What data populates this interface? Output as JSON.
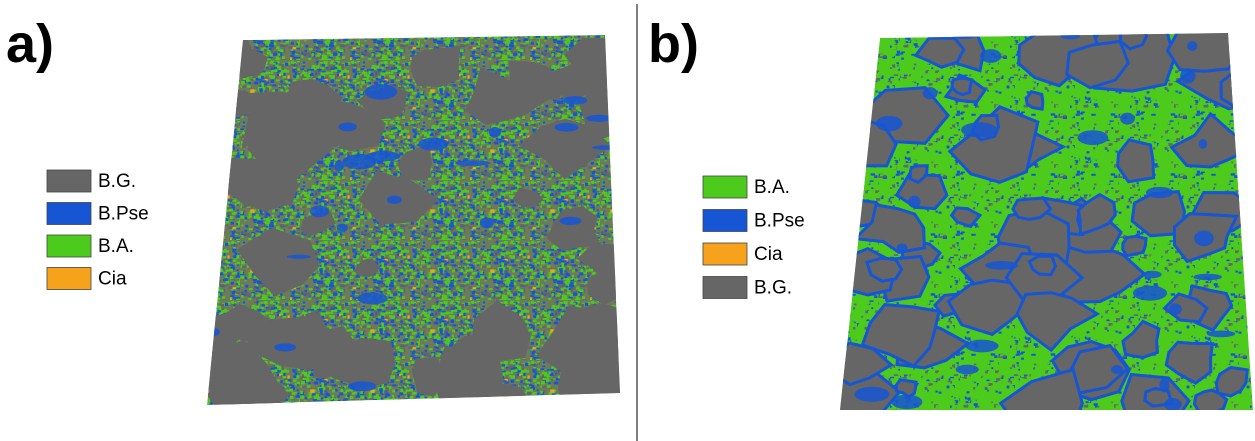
{
  "panels": [
    {
      "label": "a)",
      "legend": [
        {
          "text": "B.G.",
          "color": "#666666"
        },
        {
          "text": "B.Pse",
          "color": "#1656d4"
        },
        {
          "text": "B.A.",
          "color": "#4ccb1d"
        },
        {
          "text": "Cia",
          "color": "#f6a21a"
        }
      ]
    },
    {
      "label": "b)",
      "legend": [
        {
          "text": "B.A.",
          "color": "#4ccb1d"
        },
        {
          "text": "B.Pse",
          "color": "#1656d4"
        },
        {
          "text": "Cia",
          "color": "#f6a21a"
        },
        {
          "text": "B.G.",
          "color": "#666666"
        }
      ]
    }
  ]
}
